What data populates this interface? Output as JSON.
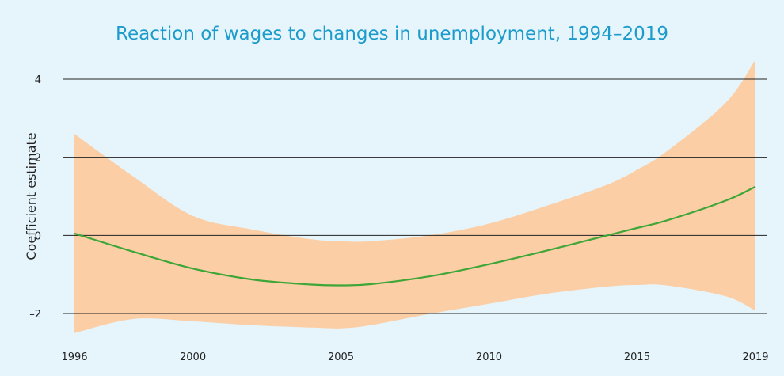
{
  "chart_data": {
    "type": "line",
    "title": "Reaction of wages to changes in unemployment, 1994–2019",
    "xlabel": "",
    "ylabel": "Coefficient estimate",
    "xlim": [
      1996,
      2019
    ],
    "ylim": [
      -2.75,
      4.5
    ],
    "y_ticks": [
      4,
      2,
      0,
      -2
    ],
    "y_tick_labels": [
      "4",
      "2",
      "0",
      "–2"
    ],
    "x_ticks": [
      1996,
      2000,
      2005,
      2010,
      2015,
      2019
    ],
    "x_tick_labels": [
      "1996",
      "2000",
      "2005",
      "2010",
      "2015",
      "2019"
    ],
    "grid": true,
    "series": [
      {
        "x": [
          1996,
          1998,
          2000,
          2002,
          2004,
          2005,
          2006,
          2008,
          2010,
          2012,
          2014,
          2015,
          2016,
          2018,
          2019
        ],
        "values": [
          0.05,
          -0.42,
          -0.85,
          -1.13,
          -1.26,
          -1.28,
          -1.25,
          -1.05,
          -0.74,
          -0.38,
          0.0,
          0.19,
          0.38,
          0.89,
          1.25
        ],
        "lower": [
          -2.5,
          -2.14,
          -2.2,
          -2.3,
          -2.36,
          -2.38,
          -2.3,
          -2.01,
          -1.75,
          -1.49,
          -1.31,
          -1.27,
          -1.28,
          -1.56,
          -1.93
        ],
        "upper": [
          2.6,
          1.5,
          0.5,
          0.15,
          -0.1,
          -0.15,
          -0.15,
          0.0,
          0.3,
          0.77,
          1.3,
          1.68,
          2.15,
          3.4,
          4.5
        ]
      }
    ],
    "colors": {
      "background": "#e6f5fb",
      "title": "#1d9ccc",
      "line": "#3da637",
      "band": "#fbcea6",
      "grid": "#222222"
    }
  }
}
